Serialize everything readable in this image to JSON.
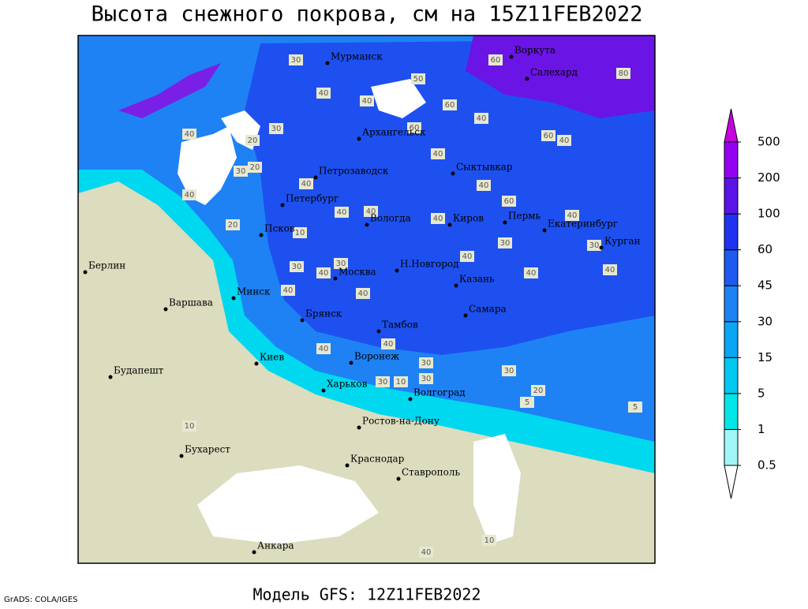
{
  "header": {
    "title": "Высота снежного покрова, см на 15Z11FEB2022"
  },
  "map": {
    "cities": [
      "Мурманск",
      "Воркута",
      "Салехард",
      "Архангельск",
      "Петрозаводск",
      "Сыктывкар",
      "Петербург",
      "Псков",
      "Вологда",
      "Киров",
      "Пермь",
      "Екатеринбург",
      "Курган",
      "Берлин",
      "Н.Новгород",
      "Москва",
      "Казань",
      "Минск",
      "Варшава",
      "Самара",
      "Брянск",
      "Тамбов",
      "Воронеж",
      "Киев",
      "Будапешт",
      "Харьков",
      "Волгоград",
      "Ростов-на-Дону",
      "Бухарест",
      "Краснодар",
      "Ставрополь",
      "Анкара"
    ],
    "contour_labels": [
      30,
      40,
      40,
      50,
      60,
      60,
      80,
      40,
      60,
      40,
      60,
      40,
      40,
      30,
      20,
      30,
      20,
      40,
      40,
      20,
      10,
      40,
      40,
      40,
      40,
      60,
      40,
      30,
      30,
      40,
      30,
      40,
      40,
      40,
      40,
      30,
      40,
      40,
      40,
      30,
      30,
      20,
      5,
      10,
      30,
      10,
      5,
      10,
      40,
      30
    ]
  },
  "legend": {
    "levels": [
      0.5,
      1,
      5,
      15,
      30,
      45,
      60,
      100,
      200,
      500
    ],
    "colors": [
      "#ffffff",
      "#a0f5f5",
      "#00e6e6",
      "#00c8f0",
      "#0aa5f5",
      "#1e82f5",
      "#1e5af0",
      "#1e32f0",
      "#5a14e6",
      "#9600f0",
      "#c800e0"
    ]
  },
  "footer": {
    "model": "Модель GFS: 12Z11FEB2022",
    "credit": "GrADS: COLA/IGES"
  }
}
